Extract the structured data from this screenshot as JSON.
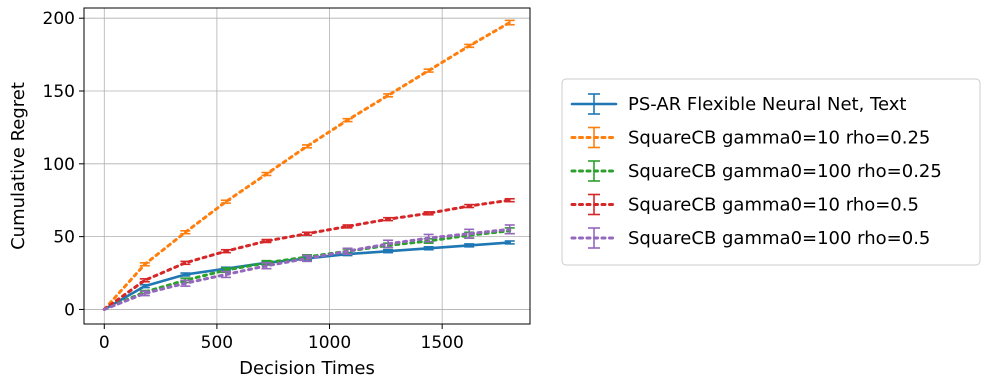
{
  "chart_data": {
    "type": "line",
    "xlabel": "Decision Times",
    "ylabel": "Cumulative Regret",
    "xlim": [
      -90,
      1890
    ],
    "ylim": [
      -10,
      207
    ],
    "xticks": [
      0,
      500,
      1000,
      1500
    ],
    "yticks": [
      0,
      50,
      100,
      150,
      200
    ],
    "grid": true,
    "legend_position": "right",
    "x": [
      0,
      180,
      360,
      540,
      720,
      900,
      1080,
      1260,
      1440,
      1620,
      1800
    ],
    "series": [
      {
        "name": "PS-AR Flexible Neural Net, Text",
        "color": "#1f77b4",
        "linestyle": "solid",
        "values": [
          0,
          16,
          24,
          28,
          32,
          35,
          38,
          40,
          42,
          44,
          46
        ],
        "errors": [
          0,
          1,
          1,
          1,
          1,
          1,
          1,
          1,
          1,
          1,
          1
        ]
      },
      {
        "name": "SquareCB gamma0=10 rho=0.25",
        "color": "#ff7f0e",
        "linestyle": "dotted",
        "values": [
          0,
          31,
          53,
          74,
          93,
          112,
          130,
          147,
          164,
          181,
          197
        ],
        "errors": [
          0,
          1,
          1,
          1,
          1,
          1,
          1,
          1,
          1,
          1,
          1.5
        ]
      },
      {
        "name": "SquareCB gamma0=100 rho=0.25",
        "color": "#2ca02c",
        "linestyle": "dotted",
        "values": [
          0,
          12,
          20,
          27,
          32,
          36,
          40,
          44,
          47,
          51,
          54
        ],
        "errors": [
          0,
          1,
          1.5,
          1.5,
          1.5,
          1.5,
          1.5,
          1.5,
          1.5,
          2,
          2
        ]
      },
      {
        "name": "SquareCB gamma0=10 rho=0.5",
        "color": "#d62728",
        "linestyle": "dotted",
        "values": [
          0,
          20,
          32,
          40,
          47,
          52,
          57,
          62,
          66,
          71,
          75
        ],
        "errors": [
          0,
          1,
          1,
          1,
          1,
          1,
          1,
          1,
          1,
          1,
          1
        ]
      },
      {
        "name": "SquareCB gamma0=100 rho=0.5",
        "color": "#9467bd",
        "linestyle": "dotted",
        "values": [
          0,
          11,
          18,
          24,
          30,
          35,
          40,
          45,
          49,
          52,
          55
        ],
        "errors": [
          0,
          1.5,
          2,
          2,
          2,
          2,
          2,
          2.5,
          2.5,
          3,
          3
        ]
      }
    ]
  }
}
